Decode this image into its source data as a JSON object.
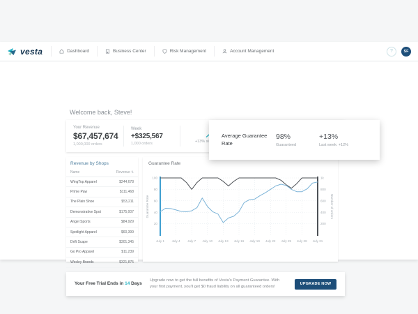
{
  "brand": {
    "name": "vesta"
  },
  "nav": {
    "items": [
      {
        "label": "Dashboard",
        "icon": "home-icon"
      },
      {
        "label": "Business Center",
        "icon": "building-icon"
      },
      {
        "label": "Risk Management",
        "icon": "shield-icon"
      },
      {
        "label": "Account Management",
        "icon": "person-icon"
      }
    ],
    "help_glyph": "?",
    "avatar_initials": "SF"
  },
  "welcome": "Welcome back, Steve!",
  "revenue_card": {
    "col1": {
      "label": "Your Revenue",
      "value": "$67,457,674",
      "sub": "1,000,000 orders"
    },
    "col2": {
      "label": "Week",
      "value": "+$325,567",
      "sub": "1,000 orders"
    },
    "trend": {
      "caption": "+13% since last week"
    }
  },
  "guarantee_popup": {
    "title": "Average Guarantee Rate",
    "rate": "98%",
    "rate_label": "Guaranteed",
    "delta": "+13%",
    "delta_label": "Last week: +12%"
  },
  "shops_panel": {
    "title": "Revenue by Shops",
    "columns": {
      "name": "Name",
      "revenue": "Revenue"
    },
    "sort_glyph": "⇅",
    "rows": [
      {
        "name": "WingTop Apparel",
        "revenue": "$244,678"
      },
      {
        "name": "Prime Paw",
        "revenue": "$111,468"
      },
      {
        "name": "The Plain Shoe",
        "revenue": "$53,211"
      },
      {
        "name": "Demonstrative Spot",
        "revenue": "$175,007"
      },
      {
        "name": "Angel Sports",
        "revenue": "$84,929"
      },
      {
        "name": "Spotlight Apparel",
        "revenue": "$60,399"
      },
      {
        "name": "Drift Scape",
        "revenue": "$301,345"
      },
      {
        "name": "Go Pro Apparel",
        "revenue": "$11,239"
      },
      {
        "name": "Wesley Brands",
        "revenue": "$321,875"
      }
    ]
  },
  "chart_panel": {
    "title": "Guarantee Rate"
  },
  "chart_data": {
    "type": "line",
    "title": "Guarantee Rate",
    "x_tick_labels": [
      "July 1",
      "July 4",
      "July 7",
      "July 10",
      "July 13",
      "July 16",
      "July 19",
      "July 22",
      "July 25",
      "July 28",
      "July 31"
    ],
    "x_tick_step": 3,
    "left_axis": {
      "label": "Guarantee Rate",
      "range": [
        0,
        100
      ],
      "ticks": [
        20,
        40,
        60,
        80,
        100
      ]
    },
    "right_axis": {
      "label": "Number of orders",
      "range": [
        0,
        1000
      ],
      "ticks": [
        200,
        400,
        600,
        800,
        1000
      ],
      "tick_labels": [
        "200",
        "400",
        "600",
        "800",
        "1k"
      ]
    },
    "grid": true,
    "series": [
      {
        "name": "Guarantee Rate",
        "axis": "left",
        "color": "#4d5156",
        "values": [
          100,
          100,
          100,
          100,
          100,
          92,
          80,
          92,
          100,
          100,
          100,
          100,
          94,
          86,
          94,
          100,
          100,
          100,
          100,
          100,
          100,
          100,
          100,
          96,
          88,
          82,
          90,
          100,
          100,
          100,
          100
        ]
      },
      {
        "name": "Number of orders",
        "axis": "right",
        "color": "#7db4d8",
        "values": [
          410,
          470,
          465,
          440,
          415,
          410,
          425,
          480,
          650,
          500,
          410,
          370,
          220,
          300,
          330,
          410,
          570,
          620,
          630,
          690,
          740,
          800,
          860,
          890,
          870,
          800,
          760,
          760,
          810,
          910,
          930
        ]
      }
    ]
  },
  "trial_banner": {
    "prefix": "Your Free Trial Ends in ",
    "highlight": "14",
    "suffix": " Days",
    "message": "Upgrade now to get the full benefits of Vesta's Payment Guarantee. With your first payment, you'll get $0 fraud liability on all guaranteed orders!",
    "button": "UPGRADE NOW"
  },
  "colors": {
    "accent_teal": "#2cb5c4",
    "navy": "#1d4e79",
    "chart_blue": "#7db4d8",
    "chart_gray": "#4d5156",
    "axis_blue": "#3f9fd0"
  }
}
